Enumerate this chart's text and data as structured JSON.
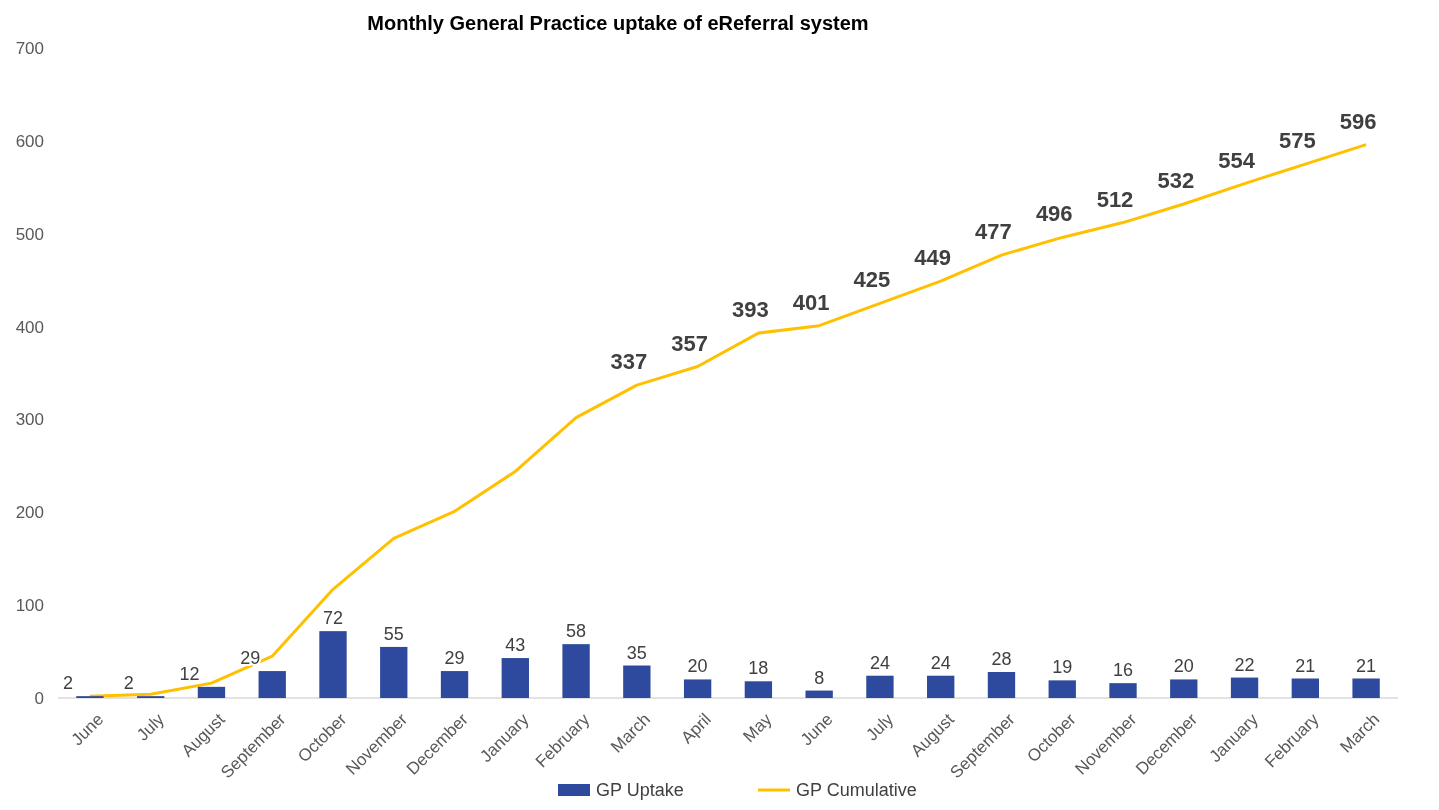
{
  "chart_data": {
    "type": "bar",
    "title": "Monthly General Practice uptake of eReferral system",
    "categories": [
      "June",
      "July",
      "August",
      "September",
      "October",
      "November",
      "December",
      "January",
      "February",
      "March",
      "April",
      "May",
      "June",
      "July",
      "August",
      "September",
      "October",
      "November",
      "December",
      "January",
      "February",
      "March"
    ],
    "series": [
      {
        "name": "GP Uptake",
        "color": "#2e4a9e",
        "values": [
          2,
          2,
          12,
          29,
          72,
          55,
          29,
          43,
          58,
          35,
          20,
          18,
          8,
          24,
          24,
          28,
          19,
          16,
          20,
          22,
          21,
          21
        ],
        "data_labels": true
      },
      {
        "name": "GP Cumulative",
        "type": "line",
        "color": "#ffc000",
        "values": [
          2,
          4,
          16,
          45,
          117,
          172,
          201,
          244,
          302,
          337,
          357,
          393,
          401,
          425,
          449,
          477,
          496,
          512,
          532,
          554,
          575,
          596
        ],
        "value_labels": [
          null,
          null,
          null,
          null,
          null,
          null,
          null,
          null,
          null,
          "337",
          "357",
          "393",
          "401",
          "425",
          "449",
          "477",
          "496",
          "512",
          "532",
          "554",
          "575",
          "596"
        ]
      }
    ],
    "ylim": [
      0,
      700
    ],
    "yticks": [
      0,
      100,
      200,
      300,
      400,
      500,
      600,
      700
    ],
    "grid": false,
    "legend": "bottom",
    "marker": "none",
    "line_style": "solid"
  }
}
